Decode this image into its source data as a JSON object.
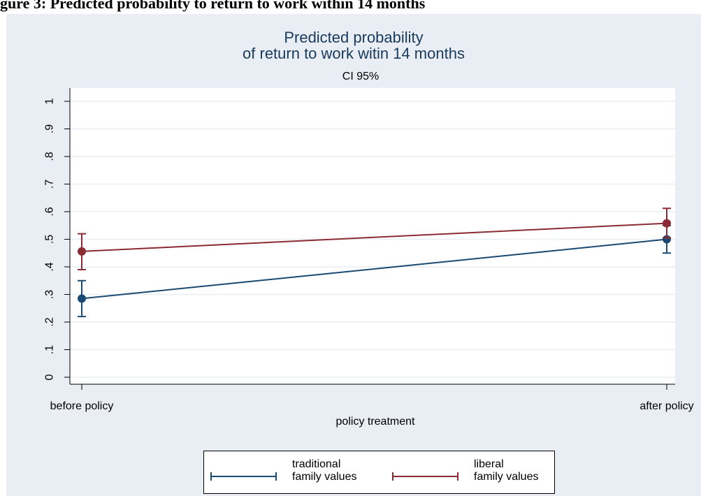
{
  "caption": "gure 3: Predicted probability to return to work within 14 months",
  "colors": {
    "panel_bg": "#e8eef3",
    "plot_bg": "#ffffff",
    "grid": "#e8eef3",
    "title": "#1a3a5c",
    "traditional": "#1a4a72",
    "liberal": "#8c2b33"
  },
  "chart_data": {
    "type": "line",
    "title_lines": [
      "Predicted probability",
      "of return to work witin 14 months"
    ],
    "subtitle": "CI 95%",
    "xlabel": "policy treatment",
    "ylabel": "",
    "categories": [
      "before policy",
      "after policy"
    ],
    "ylim": [
      0,
      1
    ],
    "yticks": [
      0,
      0.1,
      0.2,
      0.3,
      0.4,
      0.5,
      0.6,
      0.7,
      0.8,
      0.9,
      1
    ],
    "ytick_labels": [
      "0",
      ".1",
      ".2",
      ".3",
      ".4",
      ".5",
      ".6",
      ".7",
      ".8",
      ".9",
      "1"
    ],
    "grid": true,
    "legend_position": "bottom",
    "series": [
      {
        "name": "traditional\nfamily values",
        "color": "#1a4a72",
        "values": [
          0.285,
          0.5
        ],
        "ci_low": [
          0.22,
          0.45
        ],
        "ci_high": [
          0.35,
          0.55
        ]
      },
      {
        "name": "liberal\nfamily values",
        "color": "#8c2b33",
        "values": [
          0.456,
          0.558
        ],
        "ci_low": [
          0.39,
          0.505
        ],
        "ci_high": [
          0.52,
          0.612
        ]
      }
    ]
  }
}
